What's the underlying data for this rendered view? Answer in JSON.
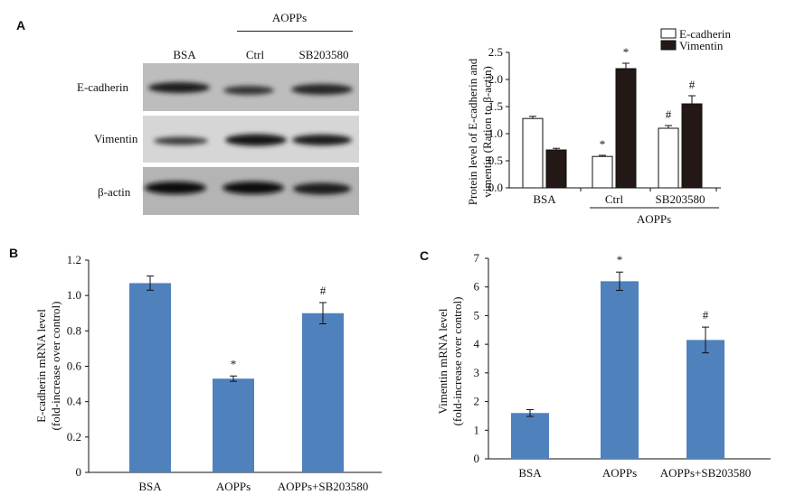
{
  "panels": {
    "a": "A",
    "b": "B",
    "c": "C"
  },
  "blot": {
    "group_label": "AOPPs",
    "lanes": [
      "BSA",
      "Ctrl",
      "SB203580"
    ],
    "rows": [
      "E-cadherin",
      "Vimentin",
      "β-actin"
    ]
  },
  "chart_data": [
    {
      "type": "bar",
      "panel": "A",
      "categories": [
        "BSA",
        "Ctrl",
        "SB203580"
      ],
      "group_label": "AOPPs",
      "series": [
        {
          "name": "E-cadherin",
          "color": "#ffffff",
          "values": [
            1.28,
            0.58,
            1.1
          ],
          "errors": [
            0.04,
            0.02,
            0.05
          ]
        },
        {
          "name": "Vimentin",
          "color": "#231815",
          "values": [
            0.7,
            2.2,
            1.55
          ],
          "errors": [
            0.03,
            0.1,
            0.15
          ]
        }
      ],
      "annotations": [
        {
          "series": 0,
          "index": 1,
          "text": "*"
        },
        {
          "series": 1,
          "index": 1,
          "text": "*"
        },
        {
          "series": 0,
          "index": 2,
          "text": "#"
        },
        {
          "series": 1,
          "index": 2,
          "text": "#"
        }
      ],
      "ylabel": [
        "Protein level of E-cadherin and",
        "vimentin (Ration to β-actin)"
      ],
      "ylim": [
        0,
        2.5
      ],
      "yticks": [
        "0.0",
        "0.5",
        "1.0",
        "1.5",
        "2.0",
        "2.5"
      ],
      "legend": "top-right",
      "grid": false
    },
    {
      "type": "bar",
      "panel": "B",
      "categories": [
        "BSA",
        "AOPPs",
        "AOPPs+SB203580"
      ],
      "values": [
        1.07,
        0.53,
        0.9
      ],
      "errors": [
        0.04,
        0.015,
        0.06
      ],
      "color": "#4f81bd",
      "annotations": [
        "",
        "*",
        "#"
      ],
      "ylabel": [
        "E-cadherin mRNA level",
        "(fold-increase over control)"
      ],
      "ylim": [
        0,
        1.2
      ],
      "yticks": [
        "0",
        "0.2",
        "0.4",
        "0.6",
        "0.8",
        "1.0",
        "1.2"
      ],
      "grid": false
    },
    {
      "type": "bar",
      "panel": "C",
      "categories": [
        "BSA",
        "AOPPs",
        "AOPPs+SB203580"
      ],
      "values": [
        1.6,
        6.2,
        4.15
      ],
      "errors": [
        0.12,
        0.32,
        0.45
      ],
      "color": "#4f81bd",
      "annotations": [
        "",
        "*",
        "#"
      ],
      "ylabel": [
        "Vimentin mRNA level",
        "(fold-increase over control)"
      ],
      "ylim": [
        0,
        7
      ],
      "yticks": [
        "0",
        "1",
        "2",
        "3",
        "4",
        "5",
        "6",
        "7"
      ],
      "grid": false
    }
  ]
}
